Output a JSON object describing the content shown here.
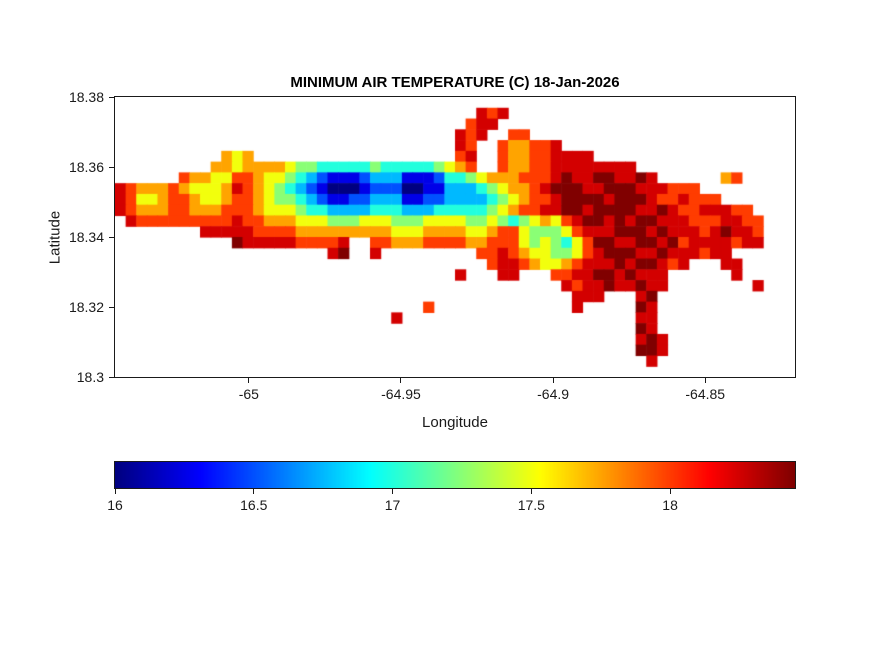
{
  "chart_data": {
    "type": "heatmap",
    "title": "MINIMUM AIR TEMPERATURE (C) 18-Jan-2026",
    "xlabel": "Longitude",
    "ylabel": "Latitude",
    "x_range": [
      -65.044,
      -64.8205
    ],
    "y_range": [
      18.3,
      18.38
    ],
    "x_ticks": [
      -65,
      -64.95,
      -64.9,
      -64.85
    ],
    "x_tick_labels": [
      "-65",
      "-64.95",
      "-64.9",
      "-64.85"
    ],
    "y_ticks": [
      18.3,
      18.32,
      18.34,
      18.36,
      18.38
    ],
    "y_tick_labels": [
      "18.3",
      "18.32",
      "18.34",
      "18.36",
      "18.38"
    ],
    "colormap": "jet",
    "color_range": [
      16,
      18.45
    ],
    "background_color": "#ffffff",
    "axis_color": "#1a1a1a",
    "colorbar": {
      "orientation": "horizontal",
      "ticks": [
        16,
        16.5,
        17,
        17.5,
        18
      ],
      "tick_labels": [
        "16",
        "16.5",
        "17",
        "17.5",
        "18"
      ]
    },
    "grid": {
      "ncols": 64,
      "nrows": 26,
      "value_encoding": {
        ".": null,
        "0": 16.0,
        "1": 16.25,
        "2": 16.5,
        "3": 16.75,
        "4": 17.0,
        "5": 17.25,
        "6": 17.5,
        "7": 17.75,
        "8": 18.0,
        "9": 18.25,
        "A": 18.45
      },
      "rows": [
        [
          "........",
          "........",
          "........",
          "........",
          "........",
          "........",
          "........",
          "........"
        ],
        [
          "........",
          "........",
          "........",
          "........",
          "..989...",
          "........",
          "........",
          "........"
        ],
        [
          "........",
          "........",
          "........",
          "........",
          ".899....",
          "........",
          "........",
          "........"
        ],
        [
          "........",
          "........",
          "........",
          "........",
          "989..88.",
          "........",
          "........",
          "........"
        ],
        [
          "........",
          "........",
          "........",
          "........",
          "98..8778",
          "89......",
          "........",
          "........"
        ],
        [
          "........",
          "..767...",
          "........",
          "........",
          "89..8778",
          "89999...",
          "........",
          "........"
        ],
        [
          "........",
          ".7767777",
          "65544444",
          "54444456",
          "78..8778",
          "89999999",
          "9.......",
          "........"
        ],
        [
          "......87",
          "76688766",
          "54321112",
          "33311124",
          "45677788",
          "89A99AA9",
          "9A9.....",
          ".78....."
        ],
        [
          "98777876",
          "66798765",
          "43210001",
          "22200113",
          "33456778",
          "9AAA99AA",
          "A999888.",
          "........"
        ],
        [
          "98667887",
          "66788765",
          "54321122",
          "33311223",
          "33345678",
          "89AAAA9A",
          "AA988988",
          "8......."
        ],
        [
          "98777887",
          "77888766",
          "65443333",
          "44433344",
          "44456788",
          "99AA9AAA",
          "A99A9889",
          "9988...."
        ],
        [
          ".9888888",
          "88898877",
          "76665556",
          "66555666",
          "65565456",
          "7689AA9A",
          "9AA99988",
          "89988..."
        ],
        [
          "........",
          "99999888",
          "87777777",
          "77666777",
          "76678865",
          "5568999A",
          "AA9A9998",
          "9A998..."
        ],
        [
          "........",
          "...A9999",
          "988889..",
          "88777888",
          "87788865",
          "65468AA9",
          "9AA9A899",
          "99899..."
        ],
        [
          "........",
          "........",
          "....9A..",
          "9.......",
          "..889876",
          "655689AA",
          "A99A9998",
          "99......"
        ],
        [
          "........",
          "........",
          "........",
          "........",
          "...89987",
          "6678999A",
          "9AA989..",
          ".99....."
        ],
        [
          "........",
          "........",
          "........",
          "........",
          "9...99..",
          ".8899AA9",
          "A999....",
          "..9....."
        ],
        [
          "........",
          "........",
          "........",
          "........",
          "........",
          "..9899A9",
          "9A99....",
          "....9..."
        ],
        [
          "........",
          "........",
          "........",
          "........",
          "........",
          "...999..",
          ".9A.....",
          "........"
        ],
        [
          "........",
          "........",
          "........",
          ".....8..",
          "........",
          "...9....",
          ".A9.....",
          "........"
        ],
        [
          "........",
          "........",
          "........",
          "..9.....",
          "........",
          "........",
          ".99.....",
          "........"
        ],
        [
          "........",
          "........",
          "........",
          "........",
          "........",
          "........",
          ".A9.....",
          "........"
        ],
        [
          "........",
          "........",
          "........",
          "........",
          "........",
          "........",
          ".9A9....",
          "........"
        ],
        [
          "........",
          "........",
          "........",
          "........",
          "........",
          "........",
          ".AA9....",
          "........"
        ],
        [
          "........",
          "........",
          "........",
          "........",
          "........",
          "........",
          "..9.....",
          "........"
        ],
        [
          "........",
          "........",
          "........",
          "........",
          "........",
          "........",
          "........",
          "........"
        ]
      ]
    }
  }
}
